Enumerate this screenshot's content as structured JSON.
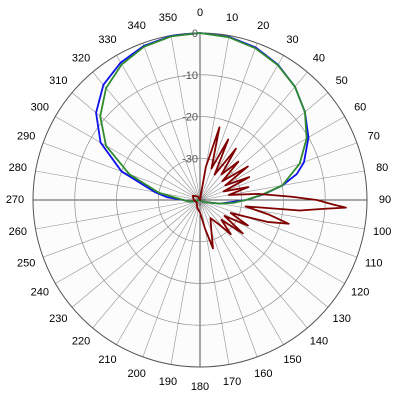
{
  "chart_data": {
    "type": "line",
    "coordinate_system": "polar",
    "angle_direction": "clockwise",
    "zero_direction": "top",
    "radial_unit": "dB",
    "radial_range": [
      -40,
      0
    ],
    "radial_rings": [
      0,
      -10,
      -20,
      -30,
      -40
    ],
    "radial_tick_labels": [
      "0",
      "-10",
      "-20",
      "-30"
    ],
    "angle_tick_labels": [
      "0",
      "10",
      "20",
      "30",
      "40",
      "50",
      "60",
      "70",
      "80",
      "90",
      "100",
      "110",
      "120",
      "130",
      "140",
      "150",
      "160",
      "170",
      "180",
      "190",
      "200",
      "210",
      "220",
      "230",
      "240",
      "250",
      "260",
      "270",
      "280",
      "290",
      "300",
      "310",
      "320",
      "330",
      "340",
      "350"
    ],
    "grid": true,
    "legend": "none",
    "series": [
      {
        "color": "#1010ee",
        "points": [
          [
            0,
            0
          ],
          [
            10,
            -0.3
          ],
          [
            20,
            -1.1
          ],
          [
            30,
            -2.6
          ],
          [
            40,
            -4.6
          ],
          [
            50,
            -7.2
          ],
          [
            60,
            -10
          ],
          [
            70,
            -13.5
          ],
          [
            75,
            -16
          ],
          [
            80,
            -20
          ],
          [
            85,
            -24.7
          ],
          [
            90,
            -29
          ],
          [
            100,
            -35
          ],
          [
            120,
            -39
          ],
          [
            150,
            -40
          ],
          [
            180,
            -40
          ],
          [
            210,
            -40
          ],
          [
            240,
            -40
          ],
          [
            260,
            -37.5
          ],
          [
            270,
            -36
          ],
          [
            275,
            -32
          ],
          [
            280,
            -29
          ],
          [
            290,
            -20
          ],
          [
            300,
            -12.5
          ],
          [
            310,
            -7.5
          ],
          [
            320,
            -4
          ],
          [
            330,
            -2
          ],
          [
            340,
            -0.7
          ],
          [
            350,
            -0.1
          ],
          [
            360,
            0
          ]
        ]
      },
      {
        "color": "#2e8b2e",
        "points": [
          [
            0,
            0
          ],
          [
            10,
            -0.4
          ],
          [
            20,
            -1.3
          ],
          [
            30,
            -2.7
          ],
          [
            40,
            -4.6
          ],
          [
            50,
            -7.2
          ],
          [
            60,
            -10.5
          ],
          [
            70,
            -14.6
          ],
          [
            80,
            -20
          ],
          [
            85,
            -25
          ],
          [
            90,
            -29
          ],
          [
            95,
            -32
          ],
          [
            100,
            -35
          ],
          [
            120,
            -39
          ],
          [
            150,
            -40
          ],
          [
            180,
            -40
          ],
          [
            210,
            -40
          ],
          [
            240,
            -40
          ],
          [
            260,
            -37.5
          ],
          [
            270,
            -36
          ],
          [
            280,
            -30
          ],
          [
            290,
            -22
          ],
          [
            300,
            -14
          ],
          [
            310,
            -8.8
          ],
          [
            320,
            -5
          ],
          [
            330,
            -2.5
          ],
          [
            340,
            -0.9
          ],
          [
            350,
            -0.2
          ],
          [
            360,
            0
          ]
        ]
      },
      {
        "color": "#800000",
        "points": [
          [
            0,
            -40
          ],
          [
            10,
            -32
          ],
          [
            15,
            -22
          ],
          [
            20,
            -32
          ],
          [
            25,
            -24
          ],
          [
            30,
            -33
          ],
          [
            35,
            -25
          ],
          [
            40,
            -32
          ],
          [
            45,
            -27
          ],
          [
            50,
            -33
          ],
          [
            55,
            -26
          ],
          [
            60,
            -33
          ],
          [
            65,
            -27
          ],
          [
            70,
            -34
          ],
          [
            75,
            -28
          ],
          [
            80,
            -33
          ],
          [
            84,
            -26
          ],
          [
            88,
            -18
          ],
          [
            90,
            -12
          ],
          [
            92,
            -8
          ],
          [
            93,
            -5
          ],
          [
            94,
            -10
          ],
          [
            96,
            -16
          ],
          [
            98,
            -29
          ],
          [
            102,
            -23
          ],
          [
            105,
            -18
          ],
          [
            108,
            -23
          ],
          [
            113,
            -32
          ],
          [
            118,
            -27
          ],
          [
            123,
            -33
          ],
          [
            128,
            -27
          ],
          [
            133,
            -33
          ],
          [
            138,
            -29
          ],
          [
            143,
            -33
          ],
          [
            150,
            -35
          ],
          [
            160,
            -32
          ],
          [
            165,
            -28
          ],
          [
            170,
            -33
          ],
          [
            180,
            -37
          ],
          [
            200,
            -38
          ],
          [
            230,
            -39
          ],
          [
            270,
            -38.5
          ],
          [
            300,
            -38
          ],
          [
            330,
            -39
          ],
          [
            360,
            -40
          ]
        ]
      }
    ]
  }
}
